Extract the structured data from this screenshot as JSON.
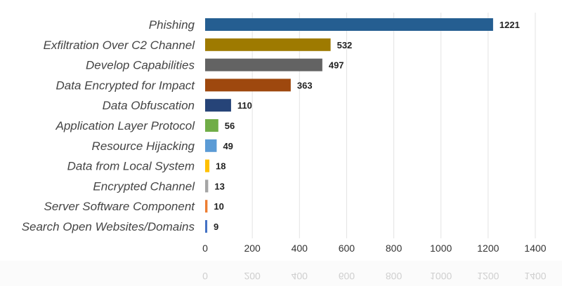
{
  "chart_data": {
    "type": "bar",
    "orientation": "horizontal",
    "categories": [
      "Phishing",
      "Exfiltration Over C2 Channel",
      "Develop Capabilities",
      "Data Encrypted for Impact",
      "Data Obfuscation",
      "Application Layer Protocol",
      "Resource Hijacking",
      "Data from Local System",
      "Encrypted Channel",
      "Server Software Component",
      "Search Open Websites/Domains"
    ],
    "values": [
      1221,
      532,
      497,
      363,
      110,
      56,
      49,
      18,
      13,
      10,
      9
    ],
    "colors": [
      "#255e91",
      "#9e7a00",
      "#636363",
      "#9e480e",
      "#264478",
      "#70ad47",
      "#5b9bd5",
      "#ffc000",
      "#a5a5a5",
      "#ed7d31",
      "#4472c4"
    ],
    "title": "",
    "xlabel": "",
    "ylabel": "",
    "xlim": [
      0,
      1400
    ],
    "xticks": [
      0,
      200,
      400,
      600,
      800,
      1000,
      1200,
      1400
    ],
    "grid": true,
    "data_labels": true,
    "legend": "none"
  }
}
